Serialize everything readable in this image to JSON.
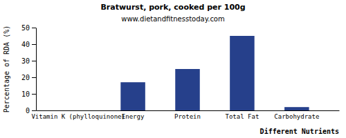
{
  "chart_data": {
    "type": "bar",
    "title": "Bratwurst, pork, cooked per 100g",
    "subtitle": "www.dietandfitnesstoday.com",
    "x_label": "Different Nutrients",
    "y_label": "Percentage of RDA (%)",
    "categories": [
      "Vitamin K (phylloquinone)",
      "Energy",
      "Protein",
      "Total Fat",
      "Carbohydrate"
    ],
    "values": [
      0,
      17,
      25,
      45,
      2
    ],
    "color": "#26408b",
    "ylim": [
      0,
      50
    ],
    "yticks": [
      0,
      10,
      20,
      30,
      40,
      50
    ],
    "grid": false
  }
}
